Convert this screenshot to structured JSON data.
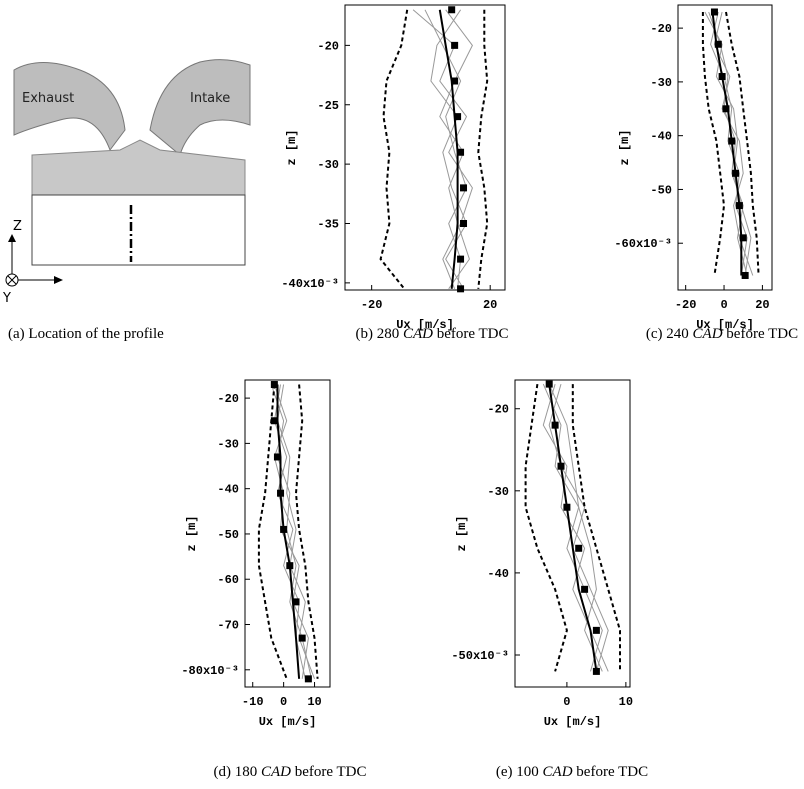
{
  "panel_a": {
    "exhaust": "Exhaust",
    "intake": "Intake",
    "axis_z": "Z",
    "axis_y": "Y",
    "caption": {
      "prefix": "(a)",
      "text": "Location of the profile"
    }
  },
  "chart_data": [
    {
      "type": "line",
      "caption": {
        "prefix": "(b) 280",
        "emph": "CAD",
        "suffix": "before TDC"
      },
      "xlabel": "Ux [m/s]",
      "ylabel": "z [m]",
      "xlim": [
        -29,
        25
      ],
      "xticks": [
        -20,
        20
      ],
      "ylim": [
        -0.0406,
        -0.0166
      ],
      "yticks": [
        {
          "value": -0.02,
          "label": "-20"
        },
        {
          "value": -0.025,
          "label": "-25"
        },
        {
          "value": -0.03,
          "label": "-30"
        },
        {
          "value": -0.035,
          "label": "-35"
        },
        {
          "value": -0.04,
          "label": "-40x10⁻³"
        }
      ],
      "z": [
        -0.017,
        -0.02,
        -0.023,
        -0.026,
        -0.029,
        -0.032,
        -0.035,
        -0.038,
        -0.0405
      ],
      "series": [
        {
          "style": "thin",
          "color": "#999999",
          "values": [
            -2,
            4,
            10,
            5,
            8,
            12,
            6,
            10,
            9
          ]
        },
        {
          "style": "thin",
          "color": "#999999",
          "values": [
            10,
            2,
            0,
            9,
            4,
            7,
            12,
            5,
            11
          ]
        },
        {
          "style": "thin",
          "color": "#999999",
          "values": [
            5,
            14,
            8,
            3,
            11,
            6,
            9,
            13,
            6
          ]
        },
        {
          "style": "thin",
          "color": "#999999",
          "values": [
            -6,
            8,
            3,
            12,
            6,
            14,
            10,
            4,
            8
          ]
        },
        {
          "style": "dashed",
          "color": "#000000",
          "values": [
            -8,
            -10,
            -15,
            -16,
            -14,
            -15,
            -14,
            -17,
            -9
          ]
        },
        {
          "style": "dashed",
          "color": "#000000",
          "values": [
            18,
            18,
            19,
            17,
            16,
            18,
            19,
            17,
            16
          ]
        },
        {
          "style": "solid",
          "color": "#000000",
          "values": [
            3,
            5,
            7,
            8,
            9,
            9,
            9,
            8,
            7
          ]
        },
        {
          "style": "markers",
          "color": "#000000",
          "values": [
            7,
            8,
            8,
            9,
            10,
            11,
            11,
            10,
            10
          ]
        }
      ]
    },
    {
      "type": "line",
      "caption": {
        "prefix": "(c) 240",
        "emph": "CAD",
        "suffix": "before TDC"
      },
      "xlabel": "Ux [m/s]",
      "ylabel": "z [m]",
      "xlim": [
        -24,
        25
      ],
      "xticks": [
        -20,
        0,
        20
      ],
      "ylim": [
        -0.0687,
        -0.0157
      ],
      "yticks": [
        {
          "value": -0.02,
          "label": "-20"
        },
        {
          "value": -0.03,
          "label": "-30"
        },
        {
          "value": -0.04,
          "label": "-40"
        },
        {
          "value": -0.05,
          "label": "-50"
        },
        {
          "value": -0.06,
          "label": "-60x10⁻³"
        }
      ],
      "z": [
        -0.017,
        -0.023,
        -0.029,
        -0.035,
        -0.041,
        -0.047,
        -0.053,
        -0.059,
        -0.066
      ],
      "series": [
        {
          "style": "thin",
          "color": "#999999",
          "values": [
            -8,
            -2,
            2,
            0,
            6,
            4,
            10,
            7,
            12
          ]
        },
        {
          "style": "thin",
          "color": "#999999",
          "values": [
            -3,
            -7,
            0,
            4,
            2,
            8,
            6,
            12,
            9
          ]
        },
        {
          "style": "thin",
          "color": "#999999",
          "values": [
            -10,
            -1,
            -4,
            5,
            7,
            5,
            9,
            14,
            11
          ]
        },
        {
          "style": "thin",
          "color": "#999999",
          "values": [
            -1,
            -5,
            3,
            -1,
            8,
            10,
            5,
            8,
            15
          ]
        },
        {
          "style": "dashed",
          "color": "#000000",
          "values": [
            -11,
            -11,
            -10,
            -8,
            -4,
            -2,
            0,
            -2,
            -5
          ]
        },
        {
          "style": "dashed",
          "color": "#000000",
          "values": [
            1,
            4,
            8,
            10,
            12,
            14,
            15,
            17,
            18
          ]
        },
        {
          "style": "solid",
          "color": "#000000",
          "values": [
            -6,
            -4,
            -1,
            2,
            4,
            6,
            8,
            9,
            9
          ]
        },
        {
          "style": "markers",
          "color": "#000000",
          "values": [
            -5,
            -3,
            -1,
            1,
            4,
            6,
            8,
            10,
            11
          ]
        }
      ]
    },
    {
      "type": "line",
      "caption": {
        "prefix": "(d) 180",
        "emph": "CAD",
        "suffix": "before TDC"
      },
      "xlabel": "Ux [m/s]",
      "ylabel": "z [m]",
      "xlim": [
        -12.5,
        15
      ],
      "xticks": [
        -10,
        0,
        10
      ],
      "ylim": [
        -0.0838,
        -0.016
      ],
      "yticks": [
        {
          "value": -0.02,
          "label": "-20"
        },
        {
          "value": -0.03,
          "label": "-30"
        },
        {
          "value": -0.04,
          "label": "-40"
        },
        {
          "value": -0.05,
          "label": "-50"
        },
        {
          "value": -0.06,
          "label": "-60"
        },
        {
          "value": -0.07,
          "label": "-70"
        },
        {
          "value": -0.08,
          "label": "-80x10⁻³"
        }
      ],
      "z": [
        -0.017,
        -0.025,
        -0.033,
        -0.041,
        -0.049,
        -0.057,
        -0.065,
        -0.073,
        -0.082
      ],
      "series": [
        {
          "style": "thin",
          "color": "#999999",
          "values": [
            -4,
            0,
            -2,
            2,
            1,
            4,
            2,
            6,
            9
          ]
        },
        {
          "style": "thin",
          "color": "#999999",
          "values": [
            -1,
            -3,
            1,
            -2,
            3,
            0,
            5,
            4,
            7
          ]
        },
        {
          "style": "thin",
          "color": "#999999",
          "values": [
            -3,
            1,
            -3,
            0,
            -1,
            5,
            3,
            8,
            6
          ]
        },
        {
          "style": "thin",
          "color": "#999999",
          "values": [
            0,
            -2,
            2,
            1,
            4,
            2,
            7,
            5,
            10
          ]
        },
        {
          "style": "dashed",
          "color": "#000000",
          "values": [
            -3,
            -4,
            -5,
            -6,
            -8,
            -8,
            -6,
            -4,
            1
          ]
        },
        {
          "style": "dashed",
          "color": "#000000",
          "values": [
            5,
            6,
            5,
            4,
            5,
            7,
            8,
            10,
            11
          ]
        },
        {
          "style": "solid",
          "color": "#000000",
          "values": [
            -2,
            -2,
            -1,
            -1,
            0,
            2,
            3,
            4,
            5
          ]
        },
        {
          "style": "markers",
          "color": "#000000",
          "values": [
            -3,
            -3,
            -2,
            -1,
            0,
            2,
            4,
            6,
            8
          ]
        }
      ]
    },
    {
      "type": "line",
      "caption": {
        "prefix": "(e) 100",
        "emph": "CAD",
        "suffix": "before TDC"
      },
      "xlabel": "Ux [m/s]",
      "ylabel": "z [m]",
      "xlim": [
        -8.8,
        10.7
      ],
      "xticks": [
        0,
        10
      ],
      "ylim": [
        -0.0539,
        -0.0165
      ],
      "yticks": [
        {
          "value": -0.02,
          "label": "-20"
        },
        {
          "value": -0.03,
          "label": "-30"
        },
        {
          "value": -0.04,
          "label": "-40"
        },
        {
          "value": -0.05,
          "label": "-50x10⁻³"
        }
      ],
      "z": [
        -0.017,
        -0.022,
        -0.027,
        -0.032,
        -0.037,
        -0.042,
        -0.047,
        -0.052
      ],
      "series": [
        {
          "style": "thin",
          "color": "#999999",
          "values": [
            -4,
            -1,
            -2,
            2,
            0,
            3,
            6,
            4
          ]
        },
        {
          "style": "thin",
          "color": "#999999",
          "values": [
            -2,
            -4,
            0,
            -1,
            3,
            1,
            4,
            7
          ]
        },
        {
          "style": "thin",
          "color": "#999999",
          "values": [
            -3,
            0,
            1,
            2,
            4,
            5,
            3,
            6
          ]
        },
        {
          "style": "thin",
          "color": "#999999",
          "values": [
            -1,
            -3,
            -1,
            3,
            1,
            4,
            7,
            5
          ]
        },
        {
          "style": "dashed",
          "color": "#000000",
          "values": [
            -5,
            -6,
            -7,
            -7,
            -5,
            -2,
            0,
            -2
          ]
        },
        {
          "style": "dashed",
          "color": "#000000",
          "values": [
            1,
            1,
            2,
            3,
            5,
            7,
            9,
            9
          ]
        },
        {
          "style": "solid",
          "color": "#000000",
          "values": [
            -3,
            -2,
            -1,
            0,
            1,
            2,
            4,
            5
          ]
        },
        {
          "style": "markers",
          "color": "#000000",
          "values": [
            -3,
            -2,
            -1,
            0,
            2,
            3,
            5,
            5
          ]
        }
      ]
    }
  ]
}
